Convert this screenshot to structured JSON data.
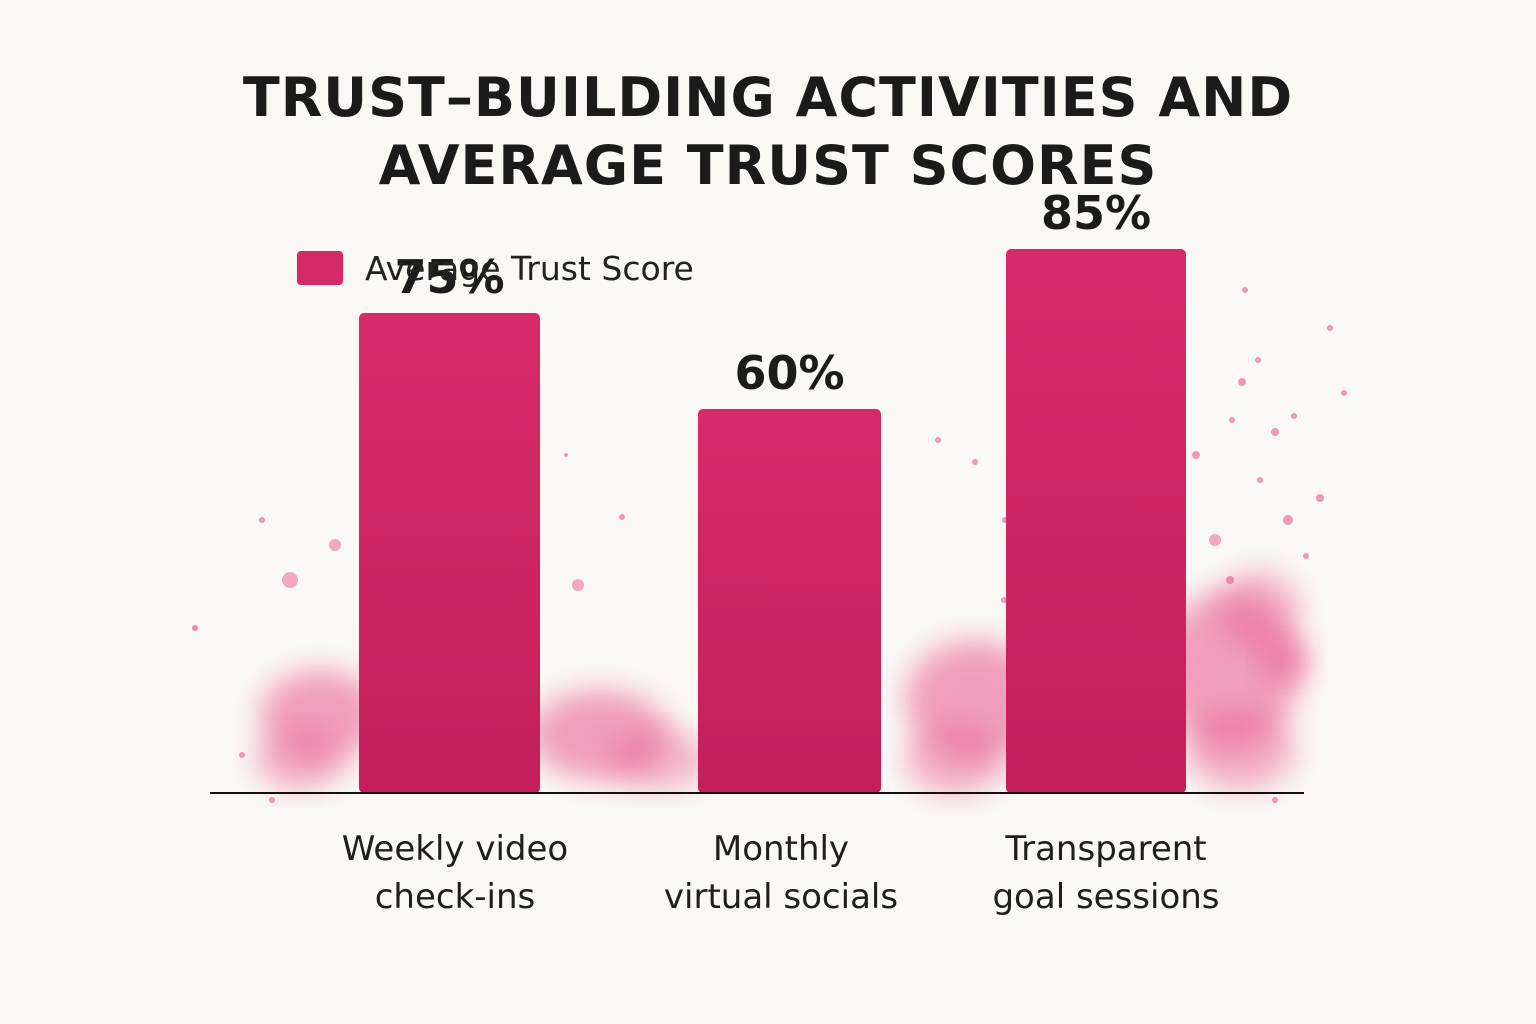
{
  "colors": {
    "bar": "#d42a66",
    "background": "#faf8f5",
    "splash": "#e8578c",
    "axis": "#111111"
  },
  "chart_data": {
    "type": "bar",
    "title_lines": [
      "TRUST–BUILDING ACTIVITIES AND",
      "AVERAGE TRUST SCORES"
    ],
    "legend": {
      "label": "Average Trust Score",
      "placement": "top-left"
    },
    "categories": [
      [
        "Weekly video",
        "check-ins"
      ],
      [
        "Monthly",
        "virtual socials"
      ],
      [
        "Transparent",
        "goal sessions"
      ]
    ],
    "series": [
      {
        "name": "Average Trust Score",
        "values": [
          75,
          60,
          85
        ],
        "value_labels": [
          "75%",
          "60%",
          "85%"
        ]
      }
    ],
    "ylim": [
      0,
      100
    ],
    "grid": false
  }
}
